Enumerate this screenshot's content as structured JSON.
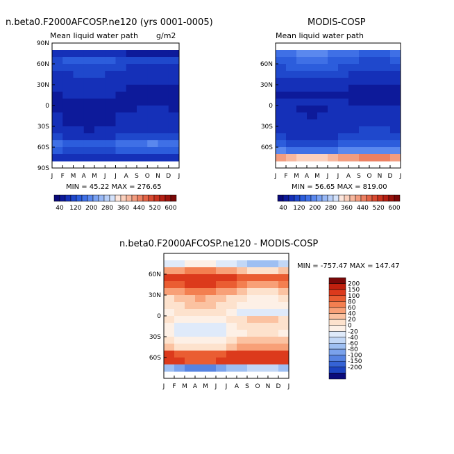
{
  "chart_data": [
    {
      "type": "heatmap",
      "title": "n.beta0.F2000AFCOSP.ne120 (yrs 0001-0005)",
      "subtitle_left": "Mean liquid water path",
      "subtitle_right": "g/m2",
      "x_ticks": [
        "J",
        "F",
        "M",
        "A",
        "M",
        "J",
        "J",
        "A",
        "S",
        "O",
        "N",
        "D",
        "J"
      ],
      "y_ticks": [
        "90N",
        "60N",
        "30N",
        "0",
        "30S",
        "60S",
        "90S"
      ],
      "stats": "MIN =  45.22  MAX = 276.65",
      "lat_profile": [
        {
          "lat": 90,
          "v": null
        },
        {
          "lat": 80,
          "v": 60
        },
        {
          "lat": 70,
          "v": 95
        },
        {
          "lat": 60,
          "v": 85
        },
        {
          "lat": 50,
          "v": 75
        },
        {
          "lat": 40,
          "v": 70
        },
        {
          "lat": 30,
          "v": 62
        },
        {
          "lat": 20,
          "v": 58
        },
        {
          "lat": 10,
          "v": 52
        },
        {
          "lat": 0,
          "v": 55
        },
        {
          "lat": -10,
          "v": 60
        },
        {
          "lat": -20,
          "v": 62
        },
        {
          "lat": -30,
          "v": 68
        },
        {
          "lat": -40,
          "v": 85
        },
        {
          "lat": -50,
          "v": 125
        },
        {
          "lat": -60,
          "v": 100
        },
        {
          "lat": -70,
          "v": 70
        },
        {
          "lat": -80,
          "v": null
        }
      ]
    },
    {
      "type": "heatmap",
      "title": "MODIS-COSP",
      "subtitle_left": "Mean liquid water path",
      "subtitle_right": "",
      "x_ticks": [
        "J",
        "F",
        "M",
        "A",
        "M",
        "J",
        "J",
        "A",
        "S",
        "O",
        "N",
        "D",
        "J"
      ],
      "y_ticks": [
        "60N",
        "30N",
        "0",
        "30S",
        "60S"
      ],
      "stats": "MIN =  56.65  MAX = 819.00",
      "lat_profile": [
        {
          "lat": 85,
          "v": null
        },
        {
          "lat": 75,
          "v": 130
        },
        {
          "lat": 65,
          "v": 110
        },
        {
          "lat": 55,
          "v": 95
        },
        {
          "lat": 45,
          "v": 80
        },
        {
          "lat": 35,
          "v": 70
        },
        {
          "lat": 25,
          "v": 62
        },
        {
          "lat": 15,
          "v": 50
        },
        {
          "lat": 5,
          "v": 62
        },
        {
          "lat": -5,
          "v": 66
        },
        {
          "lat": -15,
          "v": 68
        },
        {
          "lat": -25,
          "v": 70
        },
        {
          "lat": -35,
          "v": 75
        },
        {
          "lat": -45,
          "v": 85
        },
        {
          "lat": -55,
          "v": 100
        },
        {
          "lat": -65,
          "v": 140
        },
        {
          "lat": -75,
          "v": 300
        },
        {
          "lat": -85,
          "v": null
        }
      ]
    },
    {
      "type": "heatmap",
      "title": "n.beta0.F2000AFCOSP.ne120 - MODIS-COSP",
      "x_ticks": [
        "J",
        "F",
        "M",
        "A",
        "M",
        "J",
        "J",
        "A",
        "S",
        "O",
        "N",
        "D",
        "J"
      ],
      "y_ticks": [
        "60N",
        "30N",
        "0",
        "30S",
        "60S"
      ],
      "stats": "MIN = -757.47  MAX = 147.47",
      "lat_profile": [
        {
          "lat": 85,
          "v": null
        },
        {
          "lat": 75,
          "v": -40
        },
        {
          "lat": 65,
          "v": 40
        },
        {
          "lat": 55,
          "v": 110
        },
        {
          "lat": 45,
          "v": 80
        },
        {
          "lat": 35,
          "v": 40
        },
        {
          "lat": 25,
          "v": 15
        },
        {
          "lat": 15,
          "v": 5
        },
        {
          "lat": 5,
          "v": -10
        },
        {
          "lat": -5,
          "v": 5
        },
        {
          "lat": -15,
          "v": -10
        },
        {
          "lat": -25,
          "v": -15
        },
        {
          "lat": -35,
          "v": 10
        },
        {
          "lat": -45,
          "v": 30
        },
        {
          "lat": -55,
          "v": 110
        },
        {
          "lat": -65,
          "v": 120
        },
        {
          "lat": -75,
          "v": -80
        },
        {
          "lat": -85,
          "v": null
        }
      ]
    }
  ],
  "colorbar_abs": {
    "labels": [
      "40",
      "120",
      "200",
      "280",
      "360",
      "440",
      "520",
      "600"
    ],
    "levels": [
      20,
      40,
      60,
      80,
      100,
      120,
      140,
      160,
      180,
      200,
      220,
      240,
      260,
      280,
      300,
      320,
      360,
      400,
      440,
      480,
      520,
      560,
      600
    ],
    "colors": [
      "#0a0a7a",
      "#0d1a9a",
      "#1530b8",
      "#1f48cc",
      "#2c5ddc",
      "#3f70e6",
      "#5a88ee",
      "#7aa2f3",
      "#98b8f6",
      "#b8cff9",
      "#d4e2fb",
      "#fde6dc",
      "#fbd0bd",
      "#f7b79e",
      "#f29c7f",
      "#ec8062",
      "#e36447",
      "#d84a31",
      "#c9331f",
      "#b52014",
      "#9a120c",
      "#7a0808"
    ]
  },
  "colorbar_diff": {
    "labels": [
      "200",
      "150",
      "100",
      "80",
      "60",
      "40",
      "20",
      "0",
      "-20",
      "-40",
      "-60",
      "-80",
      "-100",
      "-150",
      "-200"
    ],
    "colors": [
      "#7a0808",
      "#c0200e",
      "#dc3a1c",
      "#ea5d32",
      "#f37f50",
      "#f8a077",
      "#fbc2a1",
      "#fde2cd",
      "#fdf0e6",
      "#dfeafa",
      "#c2d7f6",
      "#9ebff2",
      "#7aa2ec",
      "#5683e2",
      "#3563d5",
      "#1c43c0",
      "#0a0a7a"
    ]
  }
}
